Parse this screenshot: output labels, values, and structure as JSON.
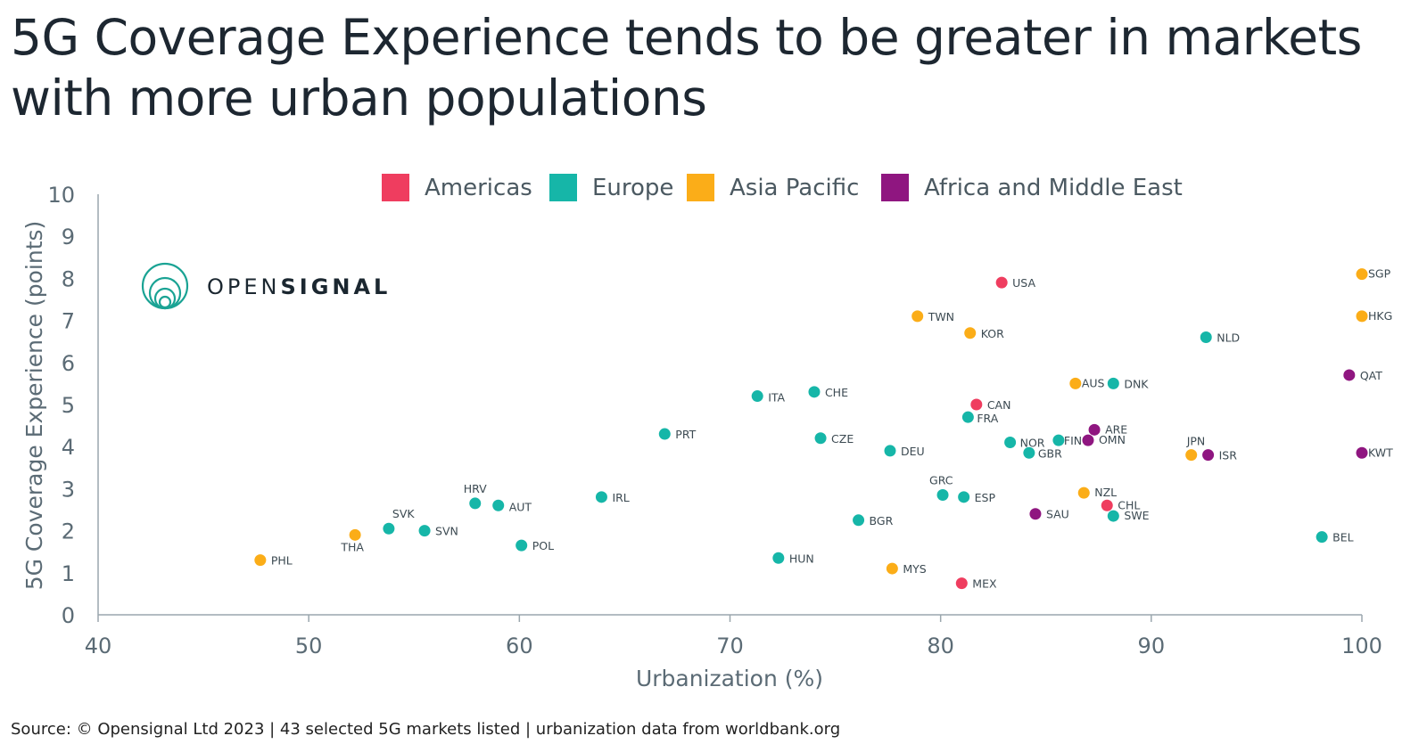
{
  "title": "5G Coverage Experience tends to be greater in markets with more urban populations",
  "source": "Source: © Opensignal Ltd 2023 | 43 selected 5G markets listed | urbanization data from worldbank.org",
  "logo": {
    "text_light": "OPEN",
    "text_bold": "SIGNAL",
    "icon": "opensignal-rings-logo",
    "color": "#1aa394"
  },
  "colors": {
    "Americas": "#ef3d5f",
    "Europe": "#16b6a8",
    "Asia Pacific": "#fbad18",
    "Africa and Middle East": "#8f1680",
    "axis": "#9aa6ad"
  },
  "chart_data": {
    "type": "scatter",
    "xlabel": "Urbanization (%)",
    "ylabel": "5G Coverage Experience (points)",
    "xlim": [
      40,
      100
    ],
    "ylim": [
      0,
      10
    ],
    "xticks": [
      40,
      50,
      60,
      70,
      80,
      90,
      100
    ],
    "yticks": [
      0,
      1,
      2,
      3,
      4,
      5,
      6,
      7,
      8,
      9,
      10
    ],
    "grid": false,
    "legend_position": "top",
    "legend": [
      "Americas",
      "Europe",
      "Asia Pacific",
      "Africa and Middle East"
    ],
    "points": [
      {
        "label": "USA",
        "region": "Americas",
        "x": 82.9,
        "y": 7.9
      },
      {
        "label": "CAN",
        "region": "Americas",
        "x": 81.7,
        "y": 5.0
      },
      {
        "label": "CHL",
        "region": "Americas",
        "x": 87.9,
        "y": 2.6
      },
      {
        "label": "MEX",
        "region": "Americas",
        "x": 81.0,
        "y": 0.75
      },
      {
        "label": "NLD",
        "region": "Europe",
        "x": 92.6,
        "y": 6.6
      },
      {
        "label": "DNK",
        "region": "Europe",
        "x": 88.2,
        "y": 5.5
      },
      {
        "label": "ITA",
        "region": "Europe",
        "x": 71.3,
        "y": 5.2
      },
      {
        "label": "CHE",
        "region": "Europe",
        "x": 74.0,
        "y": 5.3
      },
      {
        "label": "FRA",
        "region": "Europe",
        "x": 81.3,
        "y": 4.7
      },
      {
        "label": "PRT",
        "region": "Europe",
        "x": 66.9,
        "y": 4.3
      },
      {
        "label": "CZE",
        "region": "Europe",
        "x": 74.3,
        "y": 4.2
      },
      {
        "label": "DEU",
        "region": "Europe",
        "x": 77.6,
        "y": 3.9
      },
      {
        "label": "NOR",
        "region": "Europe",
        "x": 83.3,
        "y": 4.1
      },
      {
        "label": "FIN",
        "region": "Europe",
        "x": 85.6,
        "y": 4.15
      },
      {
        "label": "GBR",
        "region": "Europe",
        "x": 84.2,
        "y": 3.85
      },
      {
        "label": "GRC",
        "region": "Europe",
        "x": 80.1,
        "y": 2.85
      },
      {
        "label": "ESP",
        "region": "Europe",
        "x": 81.1,
        "y": 2.8
      },
      {
        "label": "SWE",
        "region": "Europe",
        "x": 88.2,
        "y": 2.35
      },
      {
        "label": "BEL",
        "region": "Europe",
        "x": 98.1,
        "y": 1.85
      },
      {
        "label": "IRL",
        "region": "Europe",
        "x": 63.9,
        "y": 2.8
      },
      {
        "label": "HRV",
        "region": "Europe",
        "x": 57.9,
        "y": 2.65
      },
      {
        "label": "AUT",
        "region": "Europe",
        "x": 59.0,
        "y": 2.6
      },
      {
        "label": "BGR",
        "region": "Europe",
        "x": 76.1,
        "y": 2.25
      },
      {
        "label": "SVK",
        "region": "Europe",
        "x": 53.8,
        "y": 2.05
      },
      {
        "label": "SVN",
        "region": "Europe",
        "x": 55.5,
        "y": 2.0
      },
      {
        "label": "POL",
        "region": "Europe",
        "x": 60.1,
        "y": 1.65
      },
      {
        "label": "HUN",
        "region": "Europe",
        "x": 72.3,
        "y": 1.35
      },
      {
        "label": "SGP",
        "region": "Asia Pacific",
        "x": 100.0,
        "y": 8.1
      },
      {
        "label": "HKG",
        "region": "Asia Pacific",
        "x": 100.0,
        "y": 7.1
      },
      {
        "label": "TWN",
        "region": "Asia Pacific",
        "x": 78.9,
        "y": 7.1
      },
      {
        "label": "KOR",
        "region": "Asia Pacific",
        "x": 81.4,
        "y": 6.7
      },
      {
        "label": "AUS",
        "region": "Asia Pacific",
        "x": 86.4,
        "y": 5.5
      },
      {
        "label": "JPN",
        "region": "Asia Pacific",
        "x": 91.9,
        "y": 3.8
      },
      {
        "label": "NZL",
        "region": "Asia Pacific",
        "x": 86.8,
        "y": 2.9
      },
      {
        "label": "THA",
        "region": "Asia Pacific",
        "x": 52.2,
        "y": 1.9
      },
      {
        "label": "PHL",
        "region": "Asia Pacific",
        "x": 47.7,
        "y": 1.3
      },
      {
        "label": "MYS",
        "region": "Asia Pacific",
        "x": 77.7,
        "y": 1.1
      },
      {
        "label": "QAT",
        "region": "Africa and Middle East",
        "x": 99.4,
        "y": 5.7
      },
      {
        "label": "KWT",
        "region": "Africa and Middle East",
        "x": 100.0,
        "y": 3.85
      },
      {
        "label": "ARE",
        "region": "Africa and Middle East",
        "x": 87.3,
        "y": 4.4
      },
      {
        "label": "OMN",
        "region": "Africa and Middle East",
        "x": 87.0,
        "y": 4.15
      },
      {
        "label": "ISR",
        "region": "Africa and Middle East",
        "x": 92.7,
        "y": 3.8
      },
      {
        "label": "SAU",
        "region": "Africa and Middle East",
        "x": 84.5,
        "y": 2.4
      }
    ]
  }
}
